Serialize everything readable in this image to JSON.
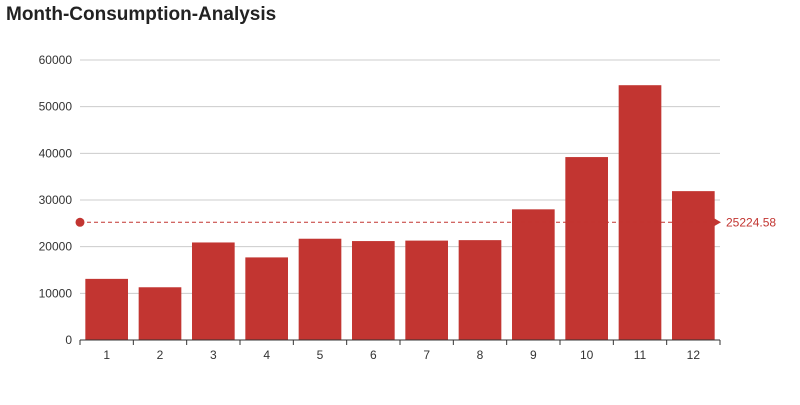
{
  "chart_data": {
    "type": "bar",
    "title": "Month-Consumption-Analysis",
    "xlabel": "",
    "ylabel": "",
    "categories": [
      "1",
      "2",
      "3",
      "4",
      "5",
      "6",
      "7",
      "8",
      "9",
      "10",
      "11",
      "12"
    ],
    "values": [
      13100,
      11300,
      20900,
      17700,
      21700,
      21200,
      21300,
      21400,
      28000,
      39200,
      54600,
      31900
    ],
    "ylim": [
      0,
      60000
    ],
    "yticks": [
      0,
      10000,
      20000,
      30000,
      40000,
      50000,
      60000
    ],
    "grid": true,
    "average_line": {
      "value": 25224.58,
      "label": "25224.58"
    },
    "colors": {
      "bar": "#c23531",
      "grid": "#cccccc",
      "axis": "#333333",
      "text": "#333333"
    }
  }
}
